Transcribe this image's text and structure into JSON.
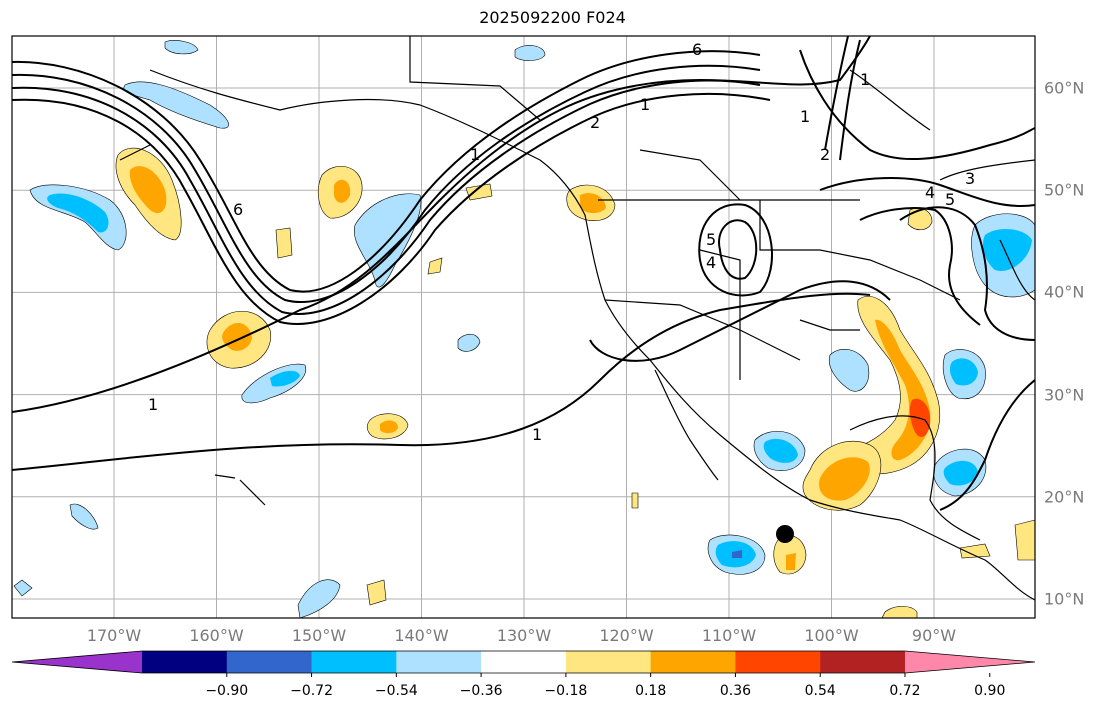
{
  "title": "2025092200 F024",
  "lon_labels": [
    "170°W",
    "160°W",
    "150°W",
    "140°W",
    "130°W",
    "120°W",
    "110°W",
    "100°W",
    "90°W"
  ],
  "lat_labels": [
    "60°N",
    "50°N",
    "40°N",
    "30°N",
    "20°N",
    "10°N"
  ],
  "contour_labels": [
    "6",
    "6",
    "1",
    "2",
    "1",
    "1",
    "1",
    "3",
    "4",
    "5",
    "5",
    "4",
    "2",
    "1",
    "1"
  ],
  "colorbar": {
    "colors": [
      "#9933cc",
      "#000080",
      "#3366cc",
      "#00bfff",
      "#aee0ff",
      "#ffffff",
      "#ffe680",
      "#ffa500",
      "#ff4500",
      "#b22222",
      "#ff88aa"
    ],
    "tick_labels": [
      "−0.90",
      "−0.72",
      "−0.54",
      "−0.36",
      "−0.18",
      "0.18",
      "0.36",
      "0.54",
      "0.72",
      "0.90"
    ]
  },
  "marker": "storm-position-dot"
}
